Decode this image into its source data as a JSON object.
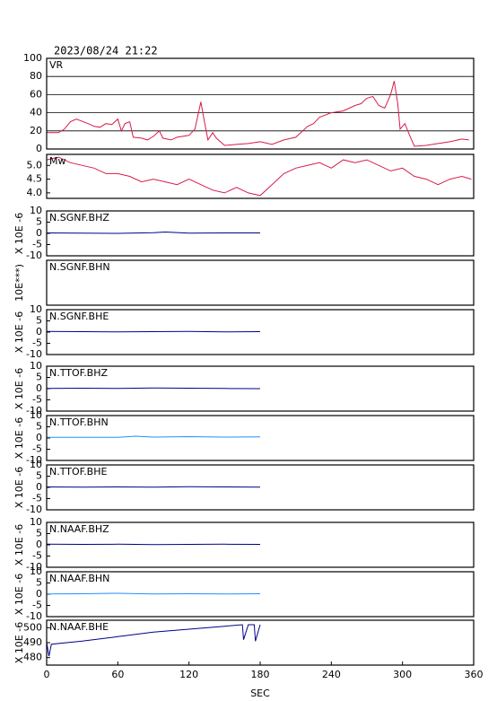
{
  "header": {
    "timestamp": "2023/08/24 21:22"
  },
  "chart_data": [
    {
      "type": "line",
      "title": "VR",
      "xlim": [
        0,
        360
      ],
      "ylim": [
        0,
        100
      ],
      "yticks": [
        0,
        20,
        40,
        60,
        80,
        100
      ],
      "grid": true,
      "series": [
        {
          "color": "#d81b4a",
          "x": [
            0,
            10,
            15,
            20,
            25,
            35,
            40,
            45,
            50,
            55,
            60,
            63,
            66,
            70,
            73,
            80,
            85,
            90,
            95,
            98,
            105,
            110,
            120,
            125,
            130,
            133,
            136,
            140,
            143,
            150,
            160,
            170,
            180,
            190,
            200,
            210,
            220,
            225,
            230,
            240,
            250,
            260,
            265,
            270,
            275,
            280,
            285,
            290,
            293,
            296,
            298,
            302,
            306,
            310,
            320,
            330,
            340,
            350,
            356
          ],
          "values": [
            18,
            18,
            22,
            30,
            33,
            28,
            25,
            24,
            28,
            27,
            33,
            20,
            28,
            30,
            13,
            12,
            10,
            14,
            20,
            12,
            10,
            13,
            15,
            22,
            52,
            30,
            10,
            18,
            12,
            4,
            5,
            6,
            8,
            5,
            10,
            13,
            25,
            28,
            35,
            40,
            42,
            48,
            50,
            56,
            58,
            48,
            45,
            60,
            75,
            50,
            22,
            28,
            15,
            3,
            4,
            6,
            8,
            11,
            10
          ]
        }
      ]
    },
    {
      "type": "line",
      "title": "Mw",
      "xlim": [
        0,
        360
      ],
      "ylim": [
        3.8,
        5.4
      ],
      "yticks": [
        {
          "value": 4,
          "label": "4.0"
        },
        4.5,
        {
          "value": 5,
          "label": "5.0"
        }
      ],
      "grid": false,
      "series": [
        {
          "color": "#d81b4a",
          "x": [
            0,
            10,
            20,
            30,
            40,
            50,
            60,
            70,
            80,
            90,
            100,
            110,
            120,
            130,
            140,
            150,
            160,
            170,
            180,
            190,
            200,
            210,
            220,
            230,
            240,
            250,
            260,
            270,
            280,
            290,
            300,
            310,
            320,
            330,
            340,
            350,
            358
          ],
          "values": [
            5.2,
            5.3,
            5.1,
            5.0,
            4.9,
            4.7,
            4.7,
            4.6,
            4.4,
            4.5,
            4.4,
            4.3,
            4.5,
            4.3,
            4.1,
            4.0,
            4.2,
            4.0,
            3.9,
            4.3,
            4.7,
            4.9,
            5.0,
            5.1,
            4.9,
            5.2,
            5.1,
            5.2,
            5.0,
            4.8,
            4.9,
            4.6,
            4.5,
            4.3,
            4.5,
            4.6,
            4.5
          ]
        }
      ]
    },
    {
      "type": "line",
      "title": "N.SGNF.BHZ",
      "ylabel": "X 10E -6",
      "xlim": [
        0,
        360
      ],
      "ylim": [
        -10,
        10
      ],
      "yticks": [
        -10,
        -5,
        0,
        5,
        10
      ],
      "series": [
        {
          "color": "#00008b",
          "x": [
            0,
            30,
            60,
            90,
            100,
            120,
            150,
            180
          ],
          "values": [
            0.2,
            0.1,
            0,
            0.3,
            0.6,
            0.1,
            0.2,
            0.2
          ]
        }
      ]
    },
    {
      "type": "line",
      "title": "N.SGNF.BHN",
      "ylabel": "10E***)",
      "xlim": [
        0,
        360
      ],
      "ylim": [
        -10,
        10
      ],
      "yticks": [],
      "series": []
    },
    {
      "type": "line",
      "title": "N.SGNF.BHE",
      "ylabel": "X 10E -6",
      "xlim": [
        0,
        360
      ],
      "ylim": [
        -10,
        10
      ],
      "yticks": [
        -10,
        -5,
        0,
        5,
        10
      ],
      "series": [
        {
          "color": "#00008b",
          "x": [
            0,
            30,
            60,
            90,
            120,
            150,
            180
          ],
          "values": [
            0.3,
            0.2,
            0.1,
            0.2,
            0.3,
            0.1,
            0.2
          ]
        }
      ]
    },
    {
      "type": "line",
      "title": "N.TTOF.BHZ",
      "ylabel": "X 10E -6",
      "xlim": [
        0,
        360
      ],
      "ylim": [
        -10,
        10
      ],
      "yticks": [
        -10,
        -5,
        0,
        5,
        10
      ],
      "series": [
        {
          "color": "#00008b",
          "x": [
            0,
            30,
            60,
            90,
            120,
            150,
            180
          ],
          "values": [
            0.1,
            0.2,
            0.1,
            0.3,
            0.2,
            0.1,
            0
          ]
        }
      ]
    },
    {
      "type": "line",
      "title": "N.TTOF.BHN",
      "ylabel": "X 10E -6",
      "xlim": [
        0,
        360
      ],
      "ylim": [
        -10,
        10
      ],
      "yticks": [
        -10,
        -5,
        0,
        5,
        10
      ],
      "series": [
        {
          "color": "#1e90ff",
          "x": [
            0,
            30,
            60,
            75,
            90,
            120,
            150,
            180
          ],
          "values": [
            0.3,
            0.3,
            0.3,
            0.8,
            0.4,
            0.6,
            0.4,
            0.5
          ]
        }
      ]
    },
    {
      "type": "line",
      "title": "N.TTOF.BHE",
      "ylabel": "X 10E -6",
      "xlim": [
        0,
        360
      ],
      "ylim": [
        -10,
        10
      ],
      "yticks": [
        -10,
        -5,
        0,
        5,
        10
      ],
      "series": [
        {
          "color": "#00008b",
          "x": [
            0,
            30,
            60,
            90,
            120,
            150,
            180
          ],
          "values": [
            0.2,
            0.1,
            0.2,
            0.1,
            0.3,
            0.2,
            0.1
          ]
        }
      ]
    },
    {
      "type": "line",
      "title": "N.NAAF.BHZ",
      "ylabel": "X 10E -6",
      "xlim": [
        0,
        360
      ],
      "ylim": [
        -10,
        10
      ],
      "yticks": [
        -10,
        -5,
        0,
        5,
        10
      ],
      "series": [
        {
          "color": "#00008b",
          "x": [
            0,
            30,
            60,
            90,
            120,
            150,
            180
          ],
          "values": [
            0.3,
            0.2,
            0.3,
            0.1,
            0.2,
            0.3,
            0.2
          ]
        }
      ]
    },
    {
      "type": "line",
      "title": "N.NAAF.BHN",
      "ylabel": "X 10E -6",
      "xlim": [
        0,
        360
      ],
      "ylim": [
        -10,
        10
      ],
      "yticks": [
        -10,
        -5,
        0,
        5,
        10
      ],
      "series": [
        {
          "color": "#1e90ff",
          "x": [
            0,
            30,
            60,
            90,
            120,
            150,
            180
          ],
          "values": [
            0.1,
            0.2,
            0.4,
            0.1,
            0.2,
            0.1,
            0.2
          ]
        }
      ]
    },
    {
      "type": "line",
      "title": "N.NAAF.BHE",
      "ylabel": "X 10E -6",
      "xlabel": "SEC",
      "xlim": [
        0,
        360
      ],
      "ylim": [
        475,
        505
      ],
      "yticks": [
        480,
        490,
        500
      ],
      "xticks": [
        0,
        60,
        120,
        180,
        240,
        300,
        360
      ],
      "series": [
        {
          "color": "#00008b",
          "x": [
            0,
            2,
            4,
            30,
            60,
            90,
            120,
            150,
            165,
            166,
            170,
            175,
            176,
            180
          ],
          "values": [
            490,
            481,
            489,
            491,
            494,
            497,
            499,
            501,
            502,
            492,
            502,
            502,
            491,
            502
          ]
        }
      ]
    }
  ]
}
